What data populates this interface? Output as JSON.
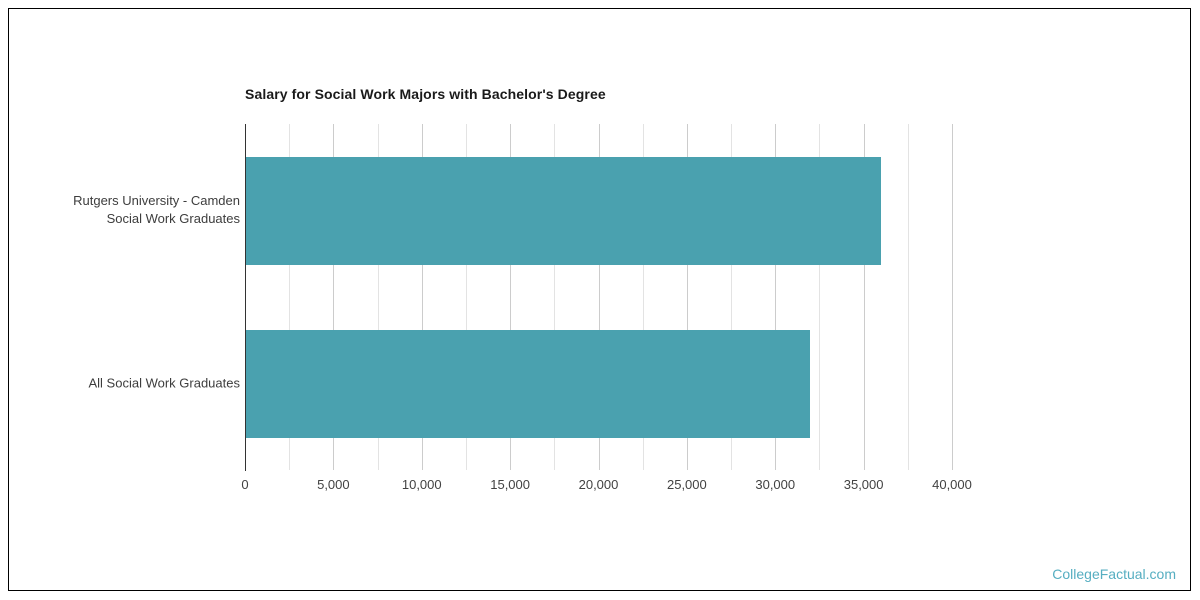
{
  "chart_data": {
    "type": "bar",
    "orientation": "horizontal",
    "title": "Salary for Social Work Majors with Bachelor's Degree",
    "categories": [
      "Rutgers University - Camden\nSocial Work Graduates",
      "All Social Work Graduates"
    ],
    "values": [
      35900,
      31900
    ],
    "xlabel": "",
    "ylabel": "",
    "xlim": [
      0,
      40000
    ],
    "x_major_step": 5000,
    "x_minor_step": 2500,
    "x_tick_labels": [
      "0",
      "5,000",
      "10,000",
      "15,000",
      "20,000",
      "25,000",
      "30,000",
      "35,000",
      "40,000"
    ],
    "grid": "vertical",
    "legend": "none",
    "bar_color": "#4aa1af",
    "axis_line_color": "#333333",
    "major_grid_color": "#cccccc",
    "minor_grid_color": "#e3e3e3"
  },
  "watermark": {
    "text": "CollegeFactual.com",
    "color": "#56aec1"
  }
}
